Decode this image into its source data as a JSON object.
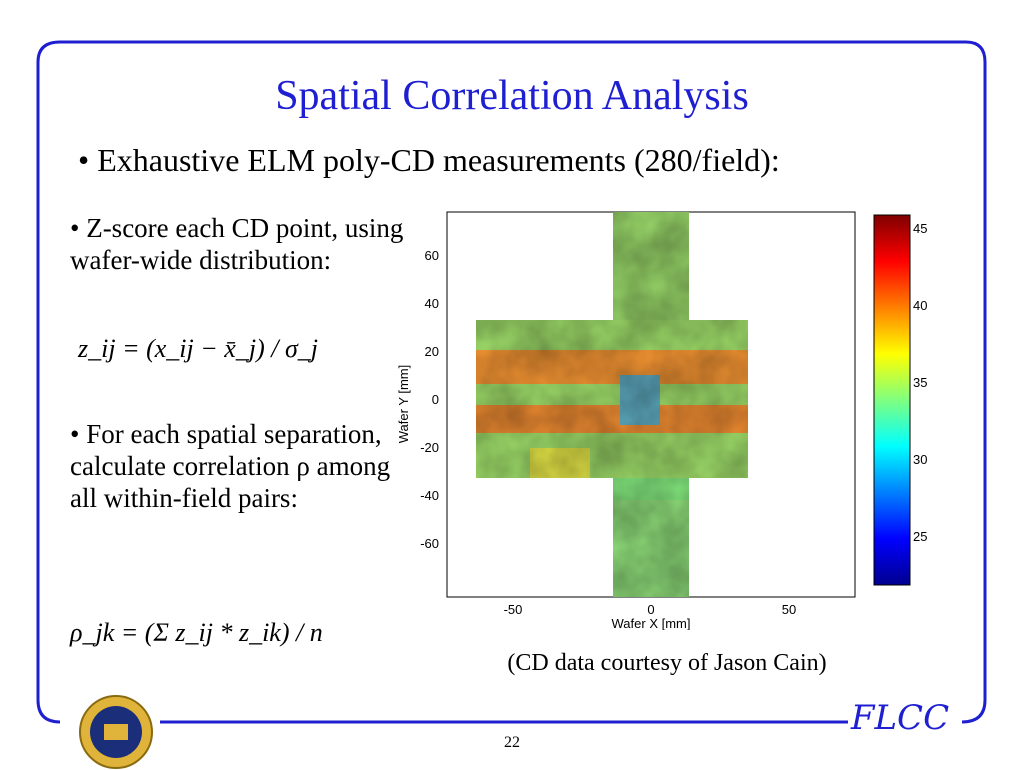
{
  "slide": {
    "title": "Spatial Correlation Analysis",
    "main_bullet": "• Exhaustive ELM poly-CD measurements (280/field):",
    "bullet1": "• Z-score each CD point, using wafer-wide distribution:",
    "bullet2": "• For each spatial separation, calculate correlation ρ among all within-field pairs:",
    "caption": "(CD data courtesy of Jason Cain)",
    "page_number": "22",
    "logo_text": "FLCC",
    "accent_color": "#1f1fd2"
  },
  "formulas": {
    "z_score": "z_ij = (x_ij − x̄_j) / σ_j",
    "correlation": "ρ_jk = (Σ z_ij * z_ik) / n"
  },
  "chart_data": {
    "type": "heatmap",
    "xlabel": "Wafer X [mm]",
    "ylabel": "Wafer Y [mm]",
    "xlim": [
      -75,
      75
    ],
    "ylim": [
      -77,
      77
    ],
    "x_ticks": [
      "-50",
      "0",
      "50"
    ],
    "y_ticks": [
      "60",
      "40",
      "20",
      "0",
      "-20",
      "-40",
      "-60"
    ],
    "colorbar": {
      "range": [
        22,
        46
      ],
      "ticks": [
        "45",
        "40",
        "35",
        "30",
        "25"
      ]
    },
    "colormap": "jet"
  }
}
